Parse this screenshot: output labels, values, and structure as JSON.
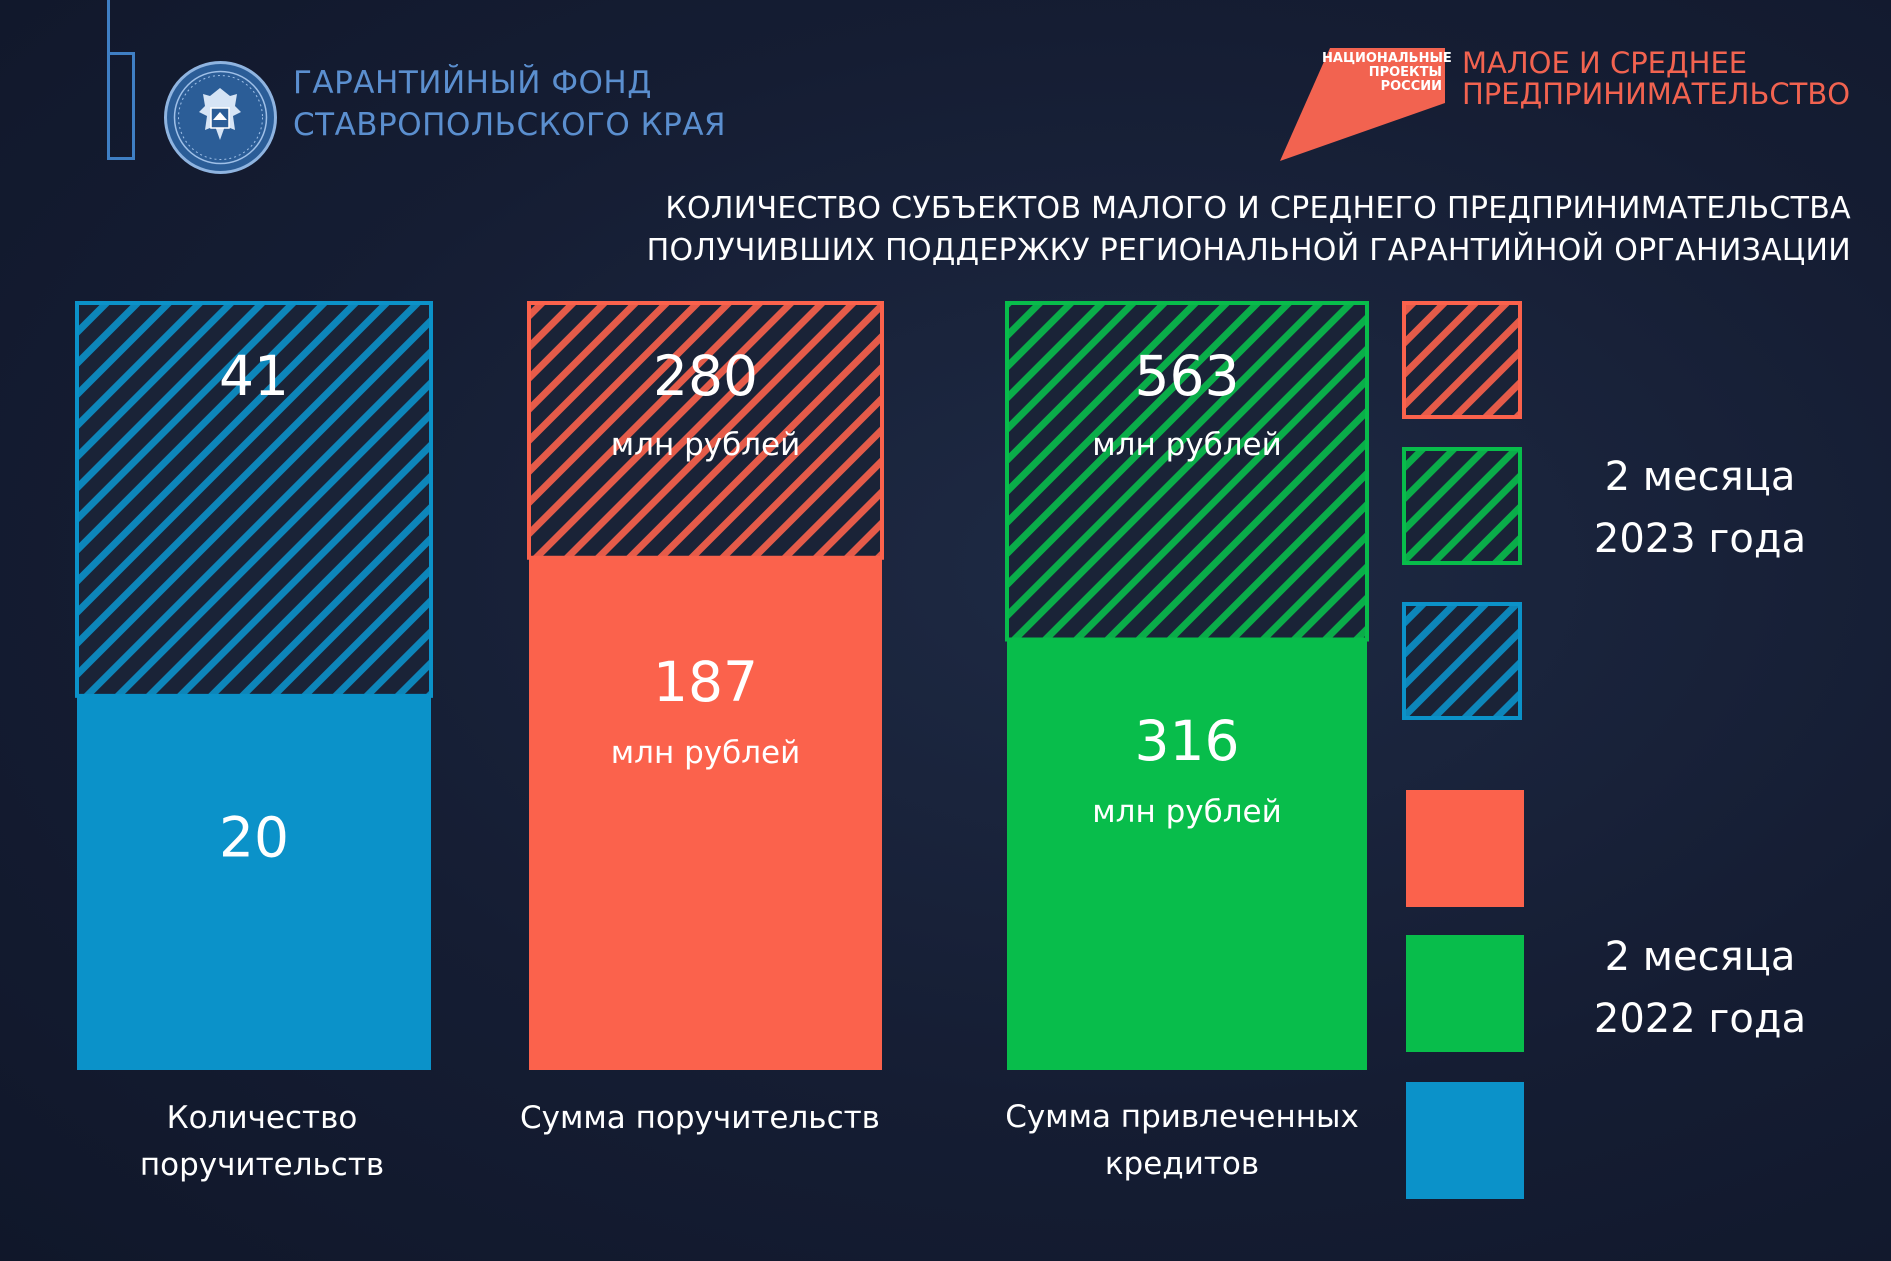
{
  "header": {
    "fund_line1": "ГАРАНТИЙНЫЙ ФОНД",
    "fund_line2": "СТАВРОПОЛЬСКОГО КРАЯ",
    "np_line1": "НАЦИОНАЛЬНЫЕ",
    "np_line2": "ПРОЕКТЫ",
    "np_line3": "РОССИИ",
    "program_line1": "МАЛОЕ И СРЕДНЕЕ",
    "program_line2": "ПРЕДПРИНИМАТЕЛЬСТВО"
  },
  "colors": {
    "blue": "#0b92c9",
    "red": "#fb624c",
    "green": "#08bd4b",
    "logo_blue": "#5b8fcf",
    "np_red": "#f26350"
  },
  "chart_data": {
    "type": "bar",
    "stacked": true,
    "title_line1": "КОЛИЧЕСТВО СУБЪЕКТОВ МАЛОГО И СРЕДНЕГО ПРЕДПРИНИМАТЕЛЬСТВА",
    "title_line2": "ПОЛУЧИВШИХ ПОДДЕРЖКУ РЕГИОНАЛЬНОЙ ГАРАНТИЙНОЙ ОРГАНИЗАЦИИ",
    "categories": [
      {
        "line1": "Количество",
        "line2": "поручительств",
        "color": "#0b92c9"
      },
      {
        "line1": "Сумма поручительств",
        "line2": "",
        "color": "#fb624c"
      },
      {
        "line1": "Сумма привлеченных",
        "line2": "кредитов",
        "color": "#08bd4b"
      }
    ],
    "series": [
      {
        "label_line1": "2 месяца",
        "label_line2": "2023 года",
        "style": "hatched",
        "values": [
          41,
          280,
          563
        ]
      },
      {
        "label_line1": "2 месяца",
        "label_line2": "2022 года",
        "style": "solid",
        "values": [
          20,
          187,
          316
        ]
      }
    ],
    "unit": "млн рублей",
    "units_per_category": [
      "",
      "млн рублей",
      "млн рублей"
    ],
    "legend_position": "right"
  }
}
